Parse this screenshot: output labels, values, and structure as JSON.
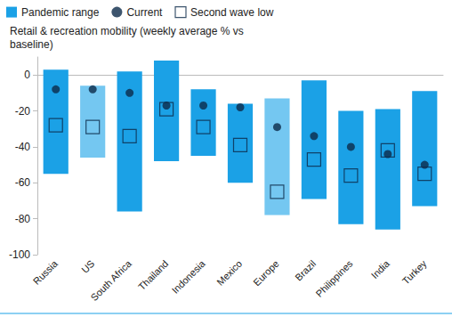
{
  "chart_data": {
    "type": "range",
    "y_label": "Retail & recreation mobility (weekly average % vs baseline)",
    "categories": [
      "Russia",
      "US",
      "South Africa",
      "Thailand",
      "Indonesia",
      "Mexico",
      "Europe",
      "Brazil",
      "Philippines",
      "India",
      "Turkey"
    ],
    "series": [
      {
        "name": "Pandemic range",
        "type": "range",
        "colors": [
          "#1ba1e6",
          "#74c7f1",
          "#1ba1e6",
          "#1ba1e6",
          "#1ba1e6",
          "#1ba1e6",
          "#74c7f1",
          "#1ba1e6",
          "#1ba1e6",
          "#1ba1e6",
          "#1ba1e6"
        ],
        "low": [
          -55,
          -46,
          -76,
          -48,
          -45,
          -60,
          -78,
          -69,
          -83,
          -86,
          -73
        ],
        "high": [
          3,
          -6,
          2,
          8,
          -8,
          -16,
          -13,
          -3,
          -20,
          -19,
          -9
        ]
      },
      {
        "name": "Current",
        "type": "scatter",
        "marker": "circle",
        "color": "#0d2a4a",
        "values": [
          -8,
          -8,
          -10,
          -17,
          -17,
          -18,
          -29,
          -34,
          -40,
          -44,
          -50
        ]
      },
      {
        "name": "Second wave low",
        "type": "scatter",
        "marker": "square",
        "color": "#0d2a4a",
        "values": [
          -28,
          -29,
          -34,
          -19,
          -29,
          -39,
          -65,
          -47,
          -56,
          -42,
          -55
        ]
      }
    ],
    "ylim": [
      -100,
      10
    ],
    "yticks": [
      0,
      -20,
      -40,
      -60,
      -80,
      -100
    ],
    "grid": false,
    "legend": "top"
  }
}
